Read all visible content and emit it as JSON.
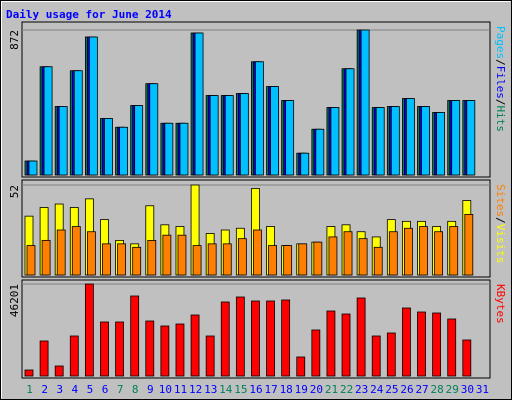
{
  "title": "Daily usage for June 2014",
  "title_color": "#0000ff",
  "legend_separator": "/",
  "chart_data": [
    {
      "type": "bar",
      "ylim": [
        0,
        872
      ],
      "yticks": [
        872
      ],
      "grid": true,
      "series": [
        {
          "name": "Hits",
          "color": "#00805c",
          "values": [
            84,
            651,
            412,
            627,
            830,
            340,
            287,
            418,
            549,
            311,
            311,
            854,
            478,
            478,
            490,
            681,
            532,
            448,
            131,
            275,
            406,
            639,
            872,
            406,
            412,
            460,
            412,
            376,
            448,
            448,
            0
          ]
        },
        {
          "name": "Files",
          "color": "#0000ff",
          "values": [
            84,
            651,
            412,
            627,
            830,
            340,
            287,
            418,
            549,
            311,
            311,
            854,
            478,
            478,
            490,
            681,
            532,
            448,
            131,
            275,
            406,
            639,
            872,
            406,
            412,
            460,
            412,
            376,
            448,
            448,
            0
          ]
        },
        {
          "name": "Pages",
          "color": "#00c0ff",
          "values": [
            84,
            651,
            412,
            627,
            830,
            340,
            287,
            418,
            549,
            311,
            311,
            854,
            478,
            478,
            490,
            681,
            532,
            448,
            131,
            275,
            406,
            639,
            872,
            406,
            412,
            460,
            412,
            376,
            448,
            448,
            0
          ]
        }
      ]
    },
    {
      "type": "bar",
      "ylim": [
        0,
        52
      ],
      "yticks": [
        52
      ],
      "grid": true,
      "series": [
        {
          "name": "Visits",
          "color": "#ffff00",
          "values": [
            34,
            39,
            41,
            39,
            44,
            32,
            20,
            18,
            40,
            29,
            28,
            52,
            24,
            26,
            27,
            50,
            28,
            17,
            18,
            19,
            28,
            29,
            25,
            22,
            32,
            31,
            31,
            28,
            31,
            43,
            0
          ]
        },
        {
          "name": "Sites",
          "color": "#ff8000",
          "values": [
            17,
            20,
            26,
            28,
            25,
            18,
            18,
            16,
            20,
            23,
            23,
            17,
            18,
            18,
            21,
            26,
            17,
            17,
            18,
            19,
            22,
            25,
            21,
            16,
            25,
            27,
            28,
            25,
            28,
            35,
            0
          ]
        }
      ]
    },
    {
      "type": "bar",
      "ylim": [
        0,
        46201
      ],
      "yticks": [
        46201
      ],
      "grid": true,
      "categories": [
        "1",
        "2",
        "3",
        "4",
        "5",
        "6",
        "7",
        "8",
        "9",
        "10",
        "11",
        "12",
        "13",
        "14",
        "15",
        "16",
        "17",
        "18",
        "19",
        "20",
        "21",
        "22",
        "23",
        "24",
        "25",
        "26",
        "27",
        "28",
        "29",
        "30",
        "31"
      ],
      "label_colors": [
        "#00805c",
        "#0000ff",
        "#0000ff",
        "#0000ff",
        "#0000ff",
        "#0000ff",
        "#00805c",
        "#00805c",
        "#0000ff",
        "#0000ff",
        "#0000ff",
        "#0000ff",
        "#0000ff",
        "#00805c",
        "#00805c",
        "#0000ff",
        "#0000ff",
        "#0000ff",
        "#0000ff",
        "#0000ff",
        "#00805c",
        "#00805c",
        "#0000ff",
        "#0000ff",
        "#0000ff",
        "#0000ff",
        "#0000ff",
        "#00805c",
        "#00805c",
        "#0000ff",
        "#0000ff"
      ],
      "series": [
        {
          "name": "KBytes",
          "color": "#ff0000",
          "values": [
            3013,
            17577,
            5022,
            20088,
            46201,
            27118,
            27118,
            40175,
            27620,
            25109,
            26113,
            30632,
            20088,
            37162,
            39673,
            37664,
            37664,
            38166,
            9541,
            23100,
            32641,
            31134,
            39171,
            20088,
            21595,
            34148,
            32139,
            31636,
            28624,
            18079,
            0
          ]
        }
      ]
    }
  ]
}
